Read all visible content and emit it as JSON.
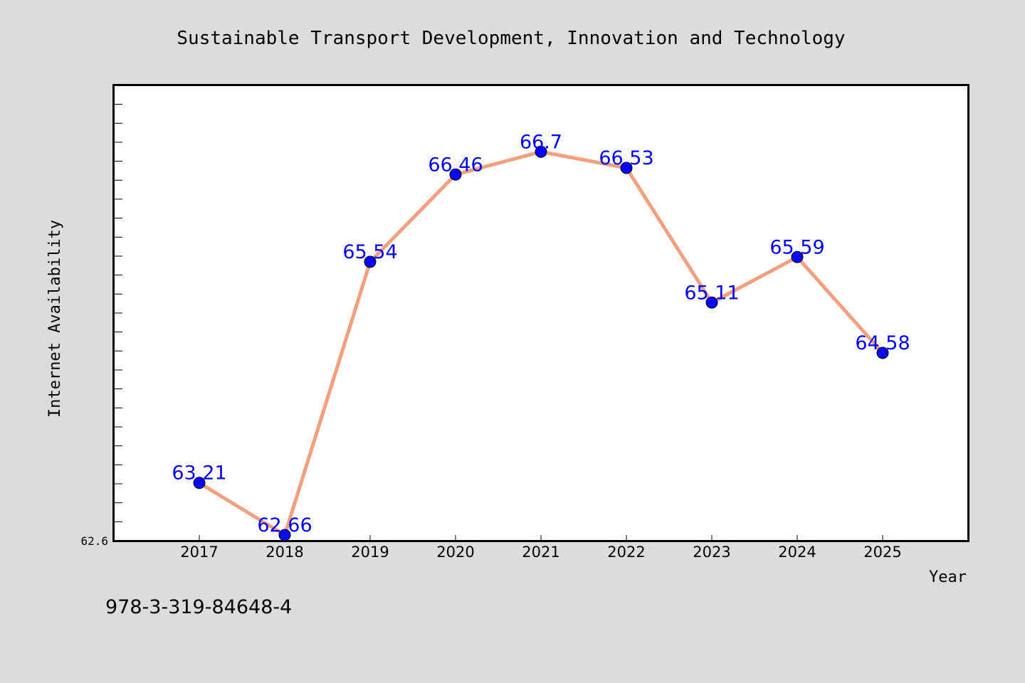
{
  "chart_data": {
    "type": "line",
    "title": "Sustainable Transport Development, Innovation and Technology",
    "xlabel": "Year",
    "ylabel": "Internet Availability",
    "categories": [
      "2017",
      "2018",
      "2019",
      "2020",
      "2021",
      "2022",
      "2023",
      "2024",
      "2025"
    ],
    "series": [
      {
        "values": [
          63.21,
          62.66,
          65.54,
          66.46,
          66.7,
          66.53,
          65.11,
          65.59,
          64.58
        ],
        "labels": [
          "63.21",
          "62.66",
          "65.54",
          "66.46",
          "66.7",
          "66.53",
          "65.11",
          "65.59",
          "64.58"
        ],
        "line_color": "#f4a07e",
        "marker_color": "#0000ff"
      }
    ],
    "ylim": [
      62.6,
      67.4
    ],
    "y_tick_labels": [
      "62.6"
    ],
    "grid": false,
    "legend": "none",
    "label_color": "#0000ff"
  },
  "footer_text": "978-3-319-84648-4",
  "colors": {
    "background": "#dcdcdc",
    "plot_area": "#ffffff",
    "axis": "#000000"
  }
}
